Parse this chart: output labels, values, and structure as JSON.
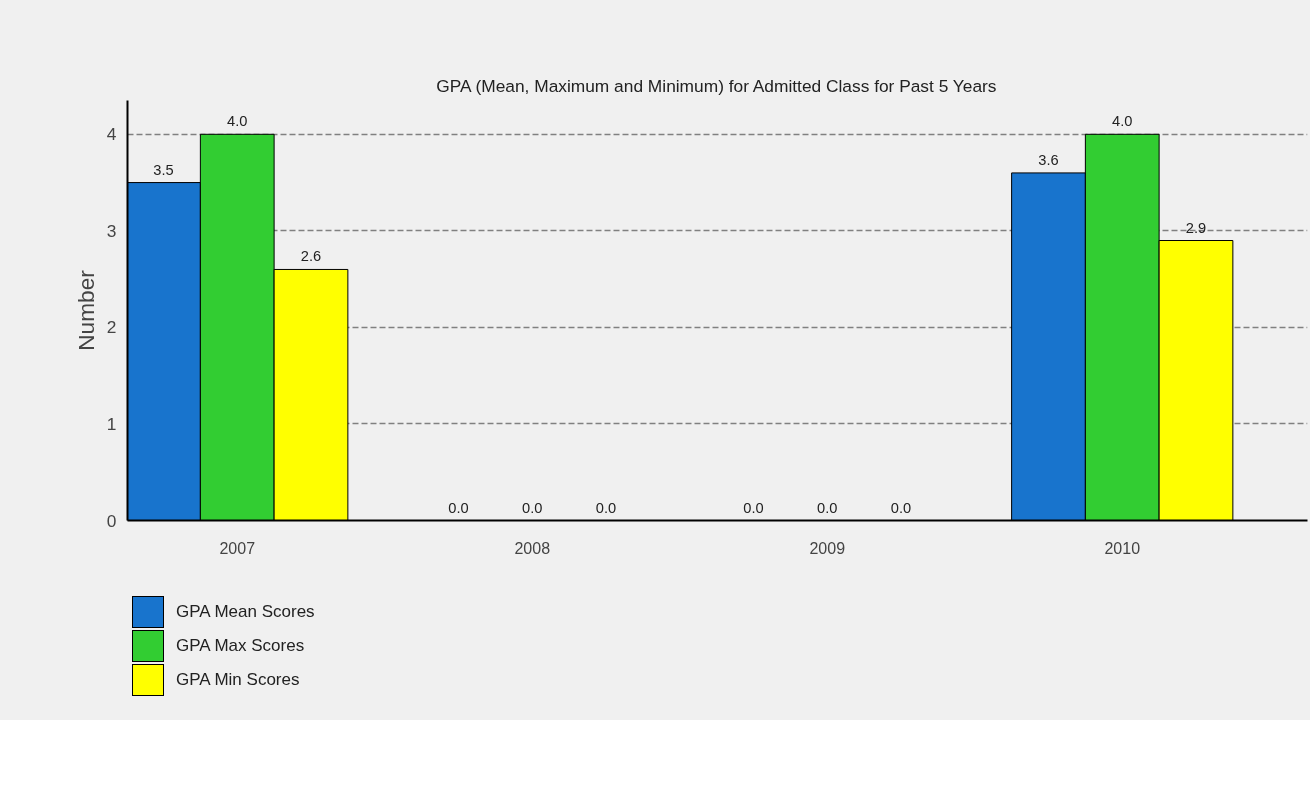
{
  "chart_data": {
    "type": "bar",
    "title": "GPA (Mean, Maximum and Minimum) for Admitted Class for Past 5 Years",
    "ylabel": "Number",
    "categories": [
      "2007",
      "2008",
      "2009",
      "2010"
    ],
    "series": [
      {
        "name": "GPA Mean Scores",
        "color": "#1874cd",
        "values": [
          3.5,
          0,
          0,
          3.6
        ],
        "value_labels": [
          "3.5",
          "0.0",
          "0.0",
          "3.6"
        ]
      },
      {
        "name": "GPA Max Scores",
        "color": "#32cd32",
        "values": [
          4.0,
          0,
          0,
          4.0
        ],
        "value_labels": [
          "4.0",
          "0.0",
          "0.0",
          "4.0"
        ]
      },
      {
        "name": "GPA Min Scores",
        "color": "#ffff00",
        "values": [
          2.6,
          0,
          0,
          2.9
        ],
        "value_labels": [
          "2.6",
          "0.0",
          "0.0",
          "2.9"
        ]
      }
    ],
    "ylim": [
      0,
      4.35
    ],
    "yticks": [
      0,
      1,
      2,
      3,
      4
    ],
    "grid": "y",
    "legend": "bottom left"
  }
}
